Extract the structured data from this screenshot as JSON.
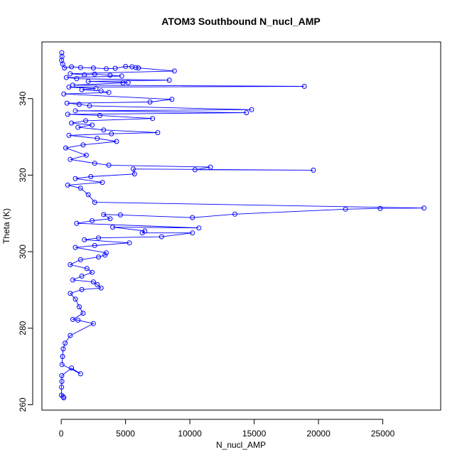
{
  "chart_data": {
    "type": "scatter",
    "title": "ATOM3 Southbound N_nucl_AMP",
    "xlabel": "N_nucl_AMP",
    "ylabel": "Theta (K)",
    "xlim": [
      -1500,
      29500
    ],
    "ylim": [
      258.6,
      354.8
    ],
    "xticks": [
      0,
      5000,
      10000,
      15000,
      20000,
      25000
    ],
    "yticks": [
      260,
      280,
      300,
      320,
      340
    ],
    "marker": "open-circle",
    "connected": true,
    "color": "#0000ff",
    "series": [
      {
        "points": [
          [
            40,
            352
          ],
          [
            60,
            351
          ],
          [
            30,
            350
          ],
          [
            120,
            349
          ],
          [
            250,
            348
          ],
          [
            800,
            348.3
          ],
          [
            1500,
            348.1
          ],
          [
            2500,
            348
          ],
          [
            3500,
            347.8
          ],
          [
            4200,
            347.9
          ],
          [
            5000,
            348.4
          ],
          [
            5500,
            348.3
          ],
          [
            5800,
            348.1
          ],
          [
            6000,
            348
          ],
          [
            8800,
            347.2
          ],
          [
            700,
            346.5
          ],
          [
            1800,
            346.2
          ],
          [
            2600,
            346.4
          ],
          [
            3800,
            346.1
          ],
          [
            4700,
            345.9
          ],
          [
            400,
            345.5
          ],
          [
            1200,
            345.2
          ],
          [
            8400,
            344.8
          ],
          [
            2100,
            344.5
          ],
          [
            5200,
            344.2
          ],
          [
            4800,
            344.1
          ],
          [
            900,
            343.5
          ],
          [
            18900,
            343.2
          ],
          [
            600,
            343
          ],
          [
            2700,
            342.6
          ],
          [
            1600,
            342.3
          ],
          [
            3100,
            342
          ],
          [
            3700,
            341.6
          ],
          [
            200,
            341.2
          ],
          [
            8600,
            339.8
          ],
          [
            6900,
            339.1
          ],
          [
            450,
            338.8
          ],
          [
            1400,
            338.5
          ],
          [
            2200,
            338.1
          ],
          [
            14800,
            337.1
          ],
          [
            1100,
            336.8
          ],
          [
            14400,
            336.3
          ],
          [
            500,
            335.9
          ],
          [
            3000,
            335.6
          ],
          [
            7100,
            334.8
          ],
          [
            1900,
            334.2
          ],
          [
            800,
            333.6
          ],
          [
            2400,
            333.1
          ],
          [
            1300,
            332.5
          ],
          [
            3300,
            331.8
          ],
          [
            7500,
            331.1
          ],
          [
            3900,
            330.8
          ],
          [
            600,
            330.4
          ],
          [
            2800,
            329.6
          ],
          [
            4300,
            328.8
          ],
          [
            1700,
            327.9
          ],
          [
            350,
            327.1
          ],
          [
            1950,
            325.2
          ],
          [
            700,
            324.1
          ],
          [
            2600,
            323.1
          ],
          [
            3700,
            322.6
          ],
          [
            11600,
            322.1
          ],
          [
            10400,
            321.4
          ],
          [
            19600,
            321.3
          ],
          [
            5600,
            321.6
          ],
          [
            5700,
            320.3
          ],
          [
            2300,
            319.6
          ],
          [
            1100,
            319.1
          ],
          [
            3200,
            318.1
          ],
          [
            500,
            317.4
          ],
          [
            1500,
            316.6
          ],
          [
            2100,
            314.9
          ],
          [
            2600,
            312.9
          ],
          [
            28200,
            311.4
          ],
          [
            24800,
            311.3
          ],
          [
            22100,
            311.1
          ],
          [
            13500,
            309.8
          ],
          [
            10200,
            308.9
          ],
          [
            4600,
            309.6
          ],
          [
            3300,
            309.7
          ],
          [
            3800,
            308.6
          ],
          [
            2400,
            308.1
          ],
          [
            1200,
            307.4
          ],
          [
            10700,
            306.2
          ],
          [
            4000,
            306.4
          ],
          [
            6500,
            305.4
          ],
          [
            6300,
            304.9
          ],
          [
            10200,
            304.9
          ],
          [
            7800,
            303.9
          ],
          [
            2900,
            303.6
          ],
          [
            1800,
            303.1
          ],
          [
            5300,
            302.3
          ],
          [
            2600,
            301.6
          ],
          [
            1100,
            301.1
          ],
          [
            3500,
            299.7
          ],
          [
            3400,
            299.1
          ],
          [
            2900,
            298.6
          ],
          [
            1500,
            297.9
          ],
          [
            700,
            296.6
          ],
          [
            2000,
            295.6
          ],
          [
            2400,
            294.6
          ],
          [
            1600,
            293.6
          ],
          [
            900,
            292.6
          ],
          [
            2500,
            292.1
          ],
          [
            2800,
            291.4
          ],
          [
            3100,
            290.5
          ],
          [
            1600,
            290.1
          ],
          [
            700,
            289.1
          ],
          [
            1100,
            287.6
          ],
          [
            1400,
            285.6
          ],
          [
            1700,
            283.9
          ],
          [
            900,
            282.3
          ],
          [
            1300,
            282.1
          ],
          [
            2500,
            281.2
          ],
          [
            700,
            278.1
          ],
          [
            300,
            276.1
          ],
          [
            150,
            274.6
          ],
          [
            100,
            272.6
          ],
          [
            60,
            270.5
          ],
          [
            1500,
            268.1
          ],
          [
            800,
            269.6
          ],
          [
            40,
            267.6
          ],
          [
            50,
            266.1
          ],
          [
            30,
            264.6
          ],
          [
            20,
            262.5
          ],
          [
            150,
            262.1
          ],
          [
            200,
            261.8
          ]
        ]
      }
    ]
  }
}
